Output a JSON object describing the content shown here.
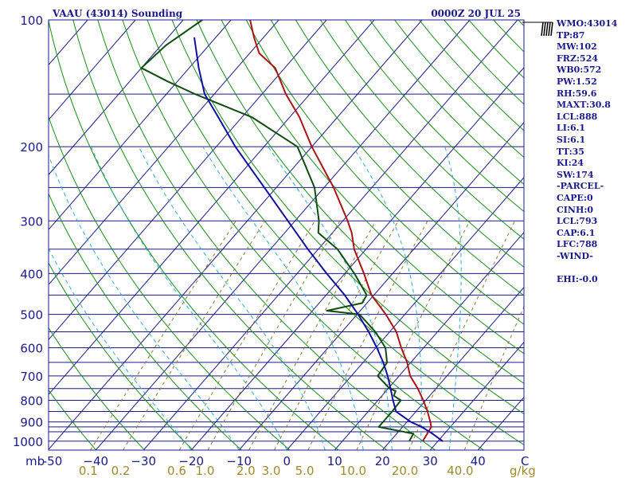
{
  "header": {
    "station": "VAAU (43014) Sounding",
    "time": "0000Z 20 JUL 25"
  },
  "indices": [
    "WMO:43014",
    "TP:87",
    "MW:102",
    "FRZ:524",
    "WB0:572",
    "PW:1.52",
    "RH:59.6",
    "MAXT:30.8",
    "LCL:888",
    "LI:6.1",
    "SI:6.1",
    "TT:35",
    "KI:24",
    "SW:174",
    "-PARCEL-",
    "CAPE:0",
    "CINH:0",
    "LCL:793",
    "CAP:6.1",
    "LFC:788",
    "-WIND-",
    "",
    "EHI:-0.0"
  ],
  "chart_data": {
    "type": "line",
    "title": "VAAU (43014) Sounding",
    "subtitle": "0000Z 20 JUL 25",
    "xlabel": "C",
    "ylabel": "mb",
    "pressure_ticks": [
      100,
      200,
      300,
      400,
      500,
      600,
      700,
      800,
      900,
      1000
    ],
    "pressure_tick_labels": [
      "100",
      "200",
      "300",
      "400",
      "500",
      "600",
      "700",
      "800",
      "900",
      "1000"
    ],
    "isobars": [
      100,
      150,
      200,
      250,
      300,
      350,
      400,
      450,
      500,
      550,
      600,
      650,
      700,
      750,
      800,
      850,
      900,
      925,
      950,
      1000
    ],
    "temperature_ticks": [
      -50,
      -40,
      -30,
      -20,
      -10,
      0,
      10,
      20,
      30,
      40
    ],
    "temperature_tick_labels": [
      "-50",
      "−40",
      "−30",
      "−20",
      "−10",
      "0",
      "10",
      "20",
      "30",
      "40"
    ],
    "mixing_ratio_labels": [
      "0.1",
      "0.2",
      "0.6",
      "1.0",
      "2.0",
      "3.0",
      "5.0",
      "10.0",
      "20.0",
      "40.0"
    ],
    "mixing_ratio_unit": "g/kg",
    "xlim": [
      -50,
      50
    ],
    "ylim": [
      1050,
      100
    ],
    "colors": {
      "frame": "#1a1a8c",
      "isotherm": "#1a1a8c",
      "dry_adiabat": "#1a8a1a",
      "moist_adiabat": "#33aacc",
      "mixing_ratio": "#8a7a30",
      "temperature": "#aa1414",
      "dewpoint": "#0f4d0f",
      "parcel": "#1010a0"
    },
    "series": [
      {
        "role": "temperature",
        "pressure": [
          1000,
          960,
          925,
          900,
          850,
          800,
          750,
          700,
          650,
          600,
          550,
          500,
          480,
          450,
          400,
          350,
          320,
          300,
          250,
          200,
          170,
          150,
          130,
          120,
          110,
          100
        ],
        "temp": [
          26.8,
          26.4,
          26.0,
          24.9,
          22.4,
          19.5,
          16.2,
          12.3,
          9.2,
          5.3,
          1.4,
          -4.0,
          -6.5,
          -10.5,
          -16.0,
          -22.5,
          -26.0,
          -29.0,
          -38.0,
          -50.0,
          -58.0,
          -65.0,
          -72.0,
          -78.0,
          -82.0,
          -86.0
        ]
      },
      {
        "role": "dewpoint",
        "pressure": [
          1000,
          960,
          925,
          900,
          850,
          800,
          780,
          760,
          750,
          700,
          650,
          600,
          550,
          500,
          490,
          470,
          450,
          400,
          350,
          320,
          300,
          250,
          200,
          170,
          150,
          140,
          130,
          115,
          100
        ],
        "temp": [
          24.0,
          23.5,
          15.0,
          15.0,
          15.0,
          14.8,
          12.5,
          12.0,
          10.3,
          5.5,
          5.0,
          2.0,
          -3.0,
          -9.5,
          -17.0,
          -11.0,
          -11.5,
          -18.0,
          -26.0,
          -33.0,
          -35.0,
          -42.0,
          -53.0,
          -68.0,
          -84.0,
          -92.0,
          -100.0,
          -99.0,
          -96.0
        ]
      },
      {
        "role": "parcel",
        "pressure": [
          1000,
          960,
          925,
          900,
          850,
          793,
          750,
          700,
          650,
          600,
          550,
          500,
          450,
          400,
          350,
          300,
          250,
          200,
          170,
          150,
          130,
          110
        ],
        "temp": [
          31.0,
          27.5,
          24.0,
          20.8,
          15.8,
          12.8,
          10.5,
          7.6,
          4.2,
          0.2,
          -4.4,
          -9.8,
          -16.1,
          -23.8,
          -32.2,
          -41.5,
          -52.5,
          -66.0,
          -75.0,
          -82.0,
          -88.0,
          -94.5
        ]
      }
    ],
    "wind_barb": {
      "pressure": 100,
      "speed_kt": 30
    },
    "grid": true,
    "legend": "none"
  }
}
